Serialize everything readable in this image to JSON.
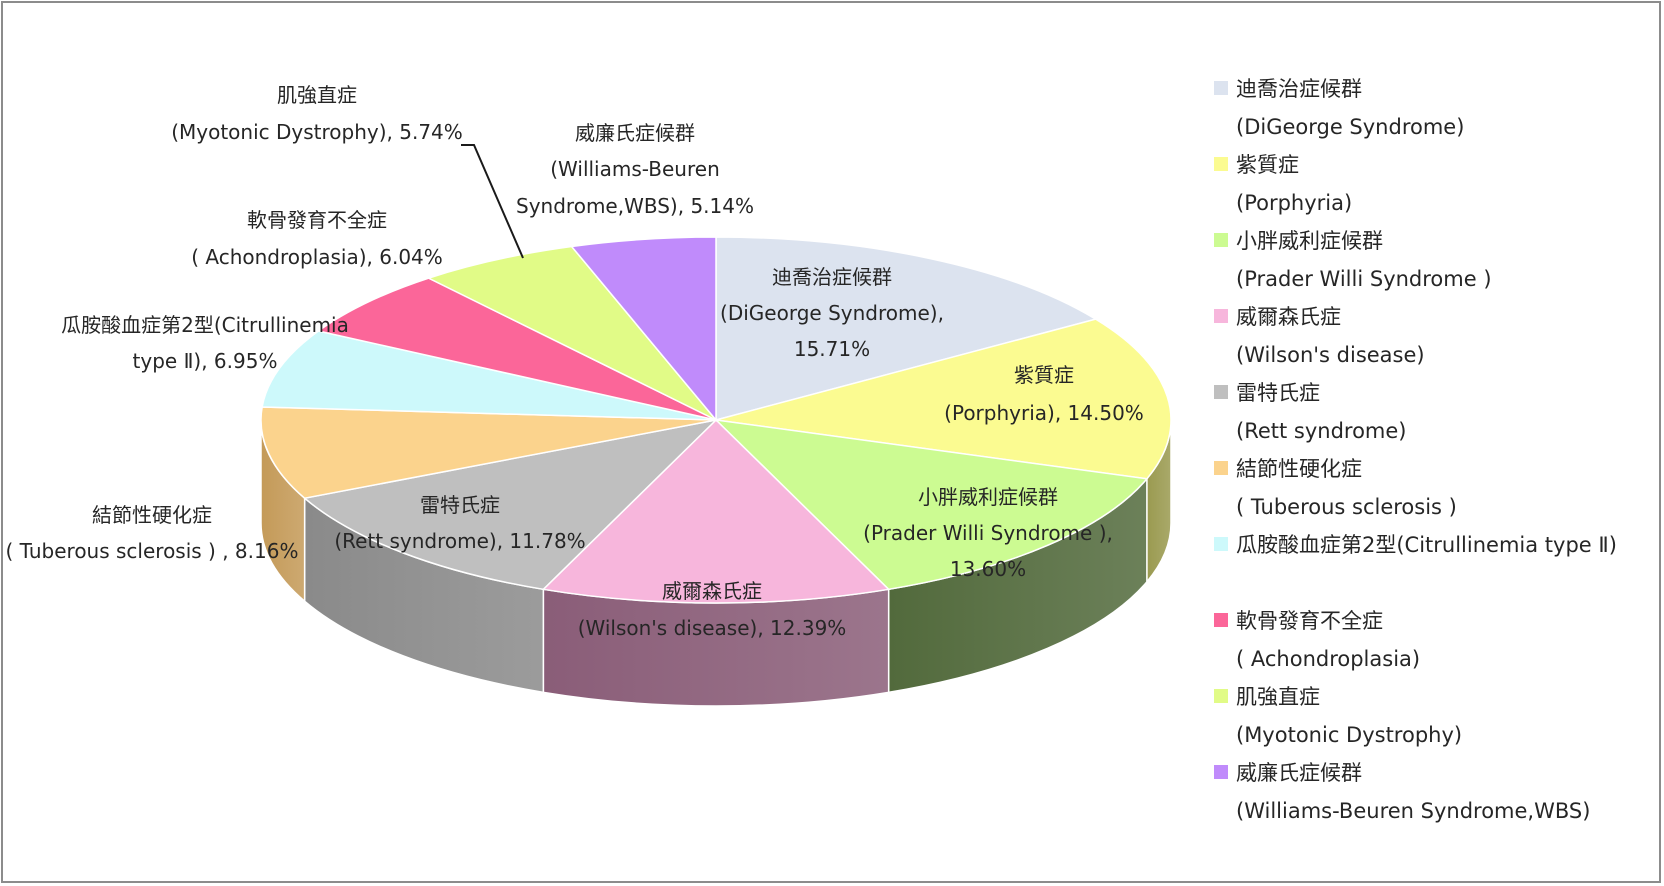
{
  "chart_data": {
    "type": "pie",
    "title": "",
    "slices": [
      {
        "cn": "迪喬治症候群",
        "en": "(DiGeorge Syndrome)",
        "label_cn": "迪喬治症候群",
        "label_en": "(DiGeorge Syndrome),",
        "pct_text": "15.71%",
        "value": 15.71,
        "color": "#dce3ef",
        "side": "#a4abb6"
      },
      {
        "cn": "紫質症",
        "en": " (Porphyria)",
        "label_cn": "紫質症",
        "label_en": "(Porphyria), 14.50%",
        "pct_text": "",
        "value": 14.5,
        "color": "#fbfb91",
        "side": "#9a9a50"
      },
      {
        "cn": "小胖威利症候群",
        "en": "(Prader Willi  Syndrome )",
        "label_cn": "小胖威利症候群",
        "label_en": "(Prader Willi  Syndrome ),",
        "pct_text": "13.60%",
        "value": 13.6,
        "color": "#ccfb92",
        "side": "#526a3c"
      },
      {
        "cn": "威爾森氏症",
        "en": "(Wilson's disease)",
        "label_cn": "威爾森氏症",
        "label_en": "(Wilson's disease), 12.39%",
        "pct_text": "",
        "value": 12.39,
        "color": "#f7b6dc",
        "side": "#8a5d78"
      },
      {
        "cn": "雷特氏症",
        "en": "(Rett syndrome)",
        "label_cn": "雷特氏症",
        "label_en": "(Rett syndrome), 11.78%",
        "pct_text": "",
        "value": 11.78,
        "color": "#bfbfbf",
        "side": "#8a8a8a"
      },
      {
        "cn": "結節性硬化症",
        "en": " ( Tuberous sclerosis )",
        "label_cn": "結節性硬化症",
        "label_en": "( Tuberous sclerosis ) , 8.16%",
        "pct_text": "",
        "value": 8.16,
        "color": "#fbd38d",
        "side": "#c49a58"
      },
      {
        "cn": "瓜胺酸血症第2型(Citrullinemia type Ⅱ)",
        "en": "",
        "label_cn": "瓜胺酸血症第2型(Citrullinemia",
        "label_en": "type Ⅱ), 6.95%",
        "pct_text": "",
        "value": 6.95,
        "color": "#cdf9fb",
        "side": "#8fb0b2"
      },
      {
        "cn": "軟骨發育不全症",
        "en": "( Achondroplasia)",
        "label_cn": "軟骨發育不全症",
        "label_en": "( Achondroplasia), 6.04%",
        "pct_text": "",
        "value": 6.04,
        "color": "#fb6699",
        "side": "#b34a6e"
      },
      {
        "cn": "肌強直症",
        "en": "(Myotonic Dystrophy)",
        "label_cn": "肌強直症",
        "label_en": "(Myotonic Dystrophy), 5.74%",
        "pct_text": "",
        "value": 5.74,
        "color": "#e1fb87",
        "side": "#a0b05a"
      },
      {
        "cn": "威廉氏症候群",
        "en": "(Williams-Beuren Syndrome,WBS)",
        "label_cn": "威廉氏症候群",
        "label_en": "(Williams-Beuren",
        "pct_text": "Syndrome,WBS), 5.14%",
        "value": 5.14,
        "color": "#c08bfb",
        "side": "#8a61b8"
      }
    ],
    "legend_position": "right"
  }
}
